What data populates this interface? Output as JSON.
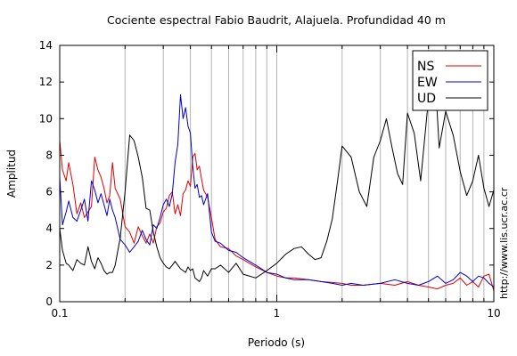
{
  "chart_data": {
    "type": "line",
    "title": "Cociente espectral Fabio Baudrit, Alajuela. Profundidad 40 m",
    "xlabel": "Periodo (s)",
    "ylabel": "Amplitud",
    "xscale": "log",
    "xlim": [
      0.1,
      10
    ],
    "ylim": [
      0,
      14
    ],
    "x_tick_labels": [
      {
        "value": 0.1,
        "label": "0.1"
      },
      {
        "value": 1,
        "label": "1"
      },
      {
        "value": 10,
        "label": "10"
      }
    ],
    "y_ticks": [
      0,
      2,
      4,
      6,
      8,
      10,
      12,
      14
    ],
    "grid": "vertical",
    "legend": "top-right",
    "credit": "http://www.lis.ucr.ac.cr",
    "series": [
      {
        "name": "NS",
        "color": "#e00000",
        "x": [
          0.1,
          0.103,
          0.107,
          0.11,
          0.115,
          0.12,
          0.125,
          0.13,
          0.135,
          0.14,
          0.145,
          0.15,
          0.155,
          0.16,
          0.165,
          0.17,
          0.175,
          0.18,
          0.19,
          0.2,
          0.21,
          0.22,
          0.23,
          0.24,
          0.25,
          0.26,
          0.27,
          0.28,
          0.29,
          0.3,
          0.31,
          0.32,
          0.33,
          0.34,
          0.35,
          0.36,
          0.37,
          0.38,
          0.39,
          0.4,
          0.41,
          0.42,
          0.43,
          0.44,
          0.45,
          0.46,
          0.48,
          0.5,
          0.52,
          0.55,
          0.6,
          0.65,
          0.7,
          0.8,
          0.9,
          1.0,
          1.1,
          1.2,
          1.4,
          1.6,
          1.8,
          2.0,
          2.2,
          2.5,
          3.0,
          3.5,
          4.0,
          4.5,
          5.0,
          5.5,
          6.0,
          6.5,
          7.0,
          7.5,
          8.0,
          8.5,
          9.0,
          9.5,
          10.0
        ],
        "values": [
          8.8,
          7.2,
          6.6,
          7.6,
          6.4,
          4.8,
          5.4,
          4.6,
          4.9,
          5.2,
          7.9,
          7.2,
          6.8,
          6.2,
          5.4,
          5.8,
          7.6,
          6.2,
          5.6,
          4.1,
          3.8,
          3.2,
          4.1,
          3.6,
          3.2,
          3.7,
          3.2,
          4.1,
          4.3,
          4.9,
          5.1,
          5.8,
          6.0,
          4.8,
          5.3,
          4.7,
          5.9,
          6.1,
          6.6,
          6.3,
          7.9,
          8.1,
          7.2,
          7.4,
          6.7,
          6.1,
          5.7,
          4.6,
          3.4,
          3.0,
          2.9,
          2.5,
          2.3,
          1.9,
          1.6,
          1.4,
          1.3,
          1.3,
          1.2,
          1.1,
          1.05,
          1.0,
          0.9,
          0.9,
          1.0,
          0.9,
          1.1,
          0.9,
          0.8,
          0.7,
          0.9,
          1.0,
          1.3,
          0.9,
          1.1,
          0.8,
          1.4,
          1.5,
          0.6
        ]
      },
      {
        "name": "EW",
        "color": "#0000cc",
        "x": [
          0.1,
          0.103,
          0.107,
          0.11,
          0.115,
          0.12,
          0.125,
          0.13,
          0.135,
          0.14,
          0.145,
          0.15,
          0.155,
          0.16,
          0.165,
          0.17,
          0.175,
          0.18,
          0.19,
          0.2,
          0.21,
          0.22,
          0.23,
          0.24,
          0.25,
          0.26,
          0.27,
          0.28,
          0.29,
          0.3,
          0.31,
          0.32,
          0.33,
          0.34,
          0.35,
          0.36,
          0.37,
          0.38,
          0.39,
          0.4,
          0.41,
          0.42,
          0.43,
          0.44,
          0.45,
          0.46,
          0.48,
          0.5,
          0.52,
          0.55,
          0.6,
          0.65,
          0.7,
          0.8,
          0.9,
          1.0,
          1.1,
          1.2,
          1.4,
          1.6,
          1.8,
          2.0,
          2.2,
          2.5,
          3.0,
          3.5,
          4.0,
          4.5,
          5.0,
          5.5,
          6.0,
          6.5,
          7.0,
          7.5,
          8.0,
          8.5,
          9.0,
          9.5,
          10.0
        ],
        "values": [
          6.8,
          4.2,
          4.9,
          5.5,
          4.6,
          4.4,
          5.0,
          5.6,
          4.4,
          6.6,
          6.1,
          5.4,
          5.9,
          5.3,
          4.7,
          5.6,
          5.0,
          4.6,
          3.4,
          3.1,
          2.7,
          3.0,
          3.3,
          3.9,
          3.4,
          3.1,
          4.2,
          4.0,
          4.6,
          5.3,
          5.6,
          5.2,
          5.9,
          7.6,
          8.6,
          11.3,
          10.0,
          10.6,
          9.6,
          9.2,
          7.4,
          6.2,
          6.4,
          5.7,
          5.8,
          5.3,
          5.9,
          3.8,
          3.3,
          3.2,
          2.8,
          2.7,
          2.4,
          2.0,
          1.6,
          1.5,
          1.3,
          1.2,
          1.2,
          1.1,
          1.0,
          0.9,
          1.0,
          0.9,
          1.0,
          1.2,
          1.0,
          0.9,
          1.1,
          1.4,
          1.0,
          1.2,
          1.6,
          1.4,
          1.1,
          1.4,
          1.3,
          1.0,
          0.8
        ]
      },
      {
        "name": "UD",
        "color": "#000000",
        "x": [
          0.1,
          0.103,
          0.107,
          0.11,
          0.115,
          0.12,
          0.125,
          0.13,
          0.135,
          0.14,
          0.145,
          0.15,
          0.155,
          0.16,
          0.165,
          0.17,
          0.175,
          0.18,
          0.19,
          0.2,
          0.21,
          0.22,
          0.23,
          0.24,
          0.25,
          0.26,
          0.27,
          0.28,
          0.29,
          0.3,
          0.31,
          0.32,
          0.33,
          0.34,
          0.35,
          0.36,
          0.37,
          0.38,
          0.39,
          0.4,
          0.41,
          0.42,
          0.43,
          0.44,
          0.45,
          0.46,
          0.48,
          0.5,
          0.52,
          0.55,
          0.6,
          0.65,
          0.7,
          0.8,
          0.9,
          1.0,
          1.1,
          1.2,
          1.3,
          1.4,
          1.5,
          1.6,
          1.7,
          1.8,
          1.9,
          2.0,
          2.2,
          2.4,
          2.6,
          2.8,
          3.0,
          3.2,
          3.4,
          3.6,
          3.8,
          4.0,
          4.3,
          4.6,
          5.0,
          5.3,
          5.6,
          6.0,
          6.5,
          7.0,
          7.5,
          8.0,
          8.5,
          9.0,
          9.5,
          10.0
        ],
        "values": [
          4.0,
          2.8,
          2.1,
          2.0,
          1.7,
          2.3,
          2.1,
          2.0,
          3.0,
          2.2,
          1.8,
          2.4,
          2.1,
          1.7,
          1.5,
          1.6,
          1.6,
          2.0,
          3.5,
          6.0,
          9.1,
          8.8,
          7.9,
          6.8,
          5.1,
          5.0,
          3.8,
          3.0,
          2.4,
          2.1,
          1.9,
          1.8,
          2.0,
          2.2,
          2.0,
          1.8,
          1.7,
          1.6,
          1.9,
          1.7,
          1.8,
          1.3,
          1.2,
          1.1,
          1.3,
          1.7,
          1.4,
          1.8,
          1.8,
          2.0,
          1.6,
          2.1,
          1.5,
          1.3,
          1.7,
          2.1,
          2.6,
          2.9,
          3.0,
          2.6,
          2.3,
          2.4,
          3.3,
          4.5,
          6.5,
          8.5,
          7.9,
          6.0,
          5.2,
          7.9,
          8.8,
          10.0,
          8.4,
          7.0,
          6.4,
          10.3,
          9.2,
          6.6,
          11.1,
          13.4,
          8.4,
          10.4,
          9.1,
          7.1,
          5.8,
          6.6,
          8.0,
          6.2,
          5.2,
          6.1
        ]
      }
    ]
  }
}
